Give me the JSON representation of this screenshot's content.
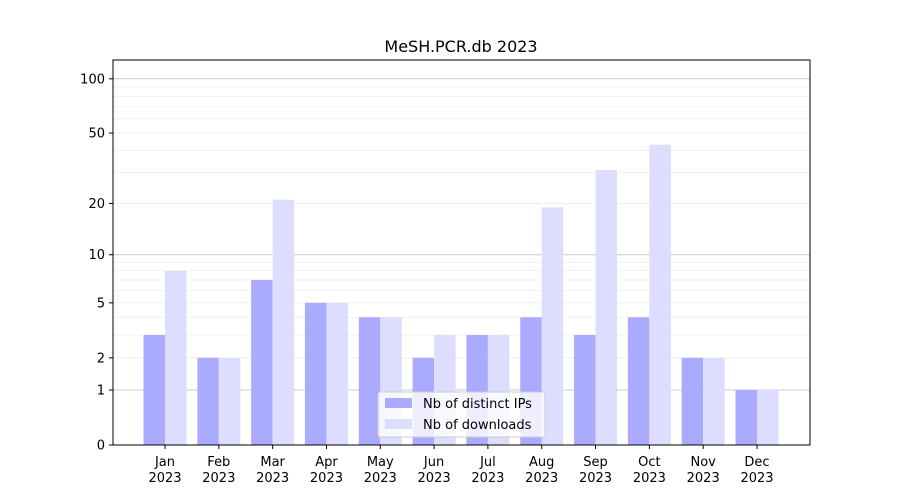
{
  "chart_data": {
    "type": "bar",
    "title": "MeSH.PCR.db 2023",
    "xlabel": "",
    "ylabel": "",
    "yscale": "symlog (log10(1+y))",
    "ylim": [
      0,
      127
    ],
    "yticks": [
      0,
      1,
      2,
      5,
      10,
      20,
      50,
      100
    ],
    "grid": true,
    "legend_position": "bottom-center",
    "categories": [
      [
        "Jan",
        "2023"
      ],
      [
        "Feb",
        "2023"
      ],
      [
        "Mar",
        "2023"
      ],
      [
        "Apr",
        "2023"
      ],
      [
        "May",
        "2023"
      ],
      [
        "Jun",
        "2023"
      ],
      [
        "Jul",
        "2023"
      ],
      [
        "Aug",
        "2023"
      ],
      [
        "Sep",
        "2023"
      ],
      [
        "Oct",
        "2023"
      ],
      [
        "Nov",
        "2023"
      ],
      [
        "Dec",
        "2023"
      ]
    ],
    "series": [
      {
        "name": "Nb of distinct IPs",
        "color": "#aaaaff",
        "values": [
          3,
          2,
          7,
          5,
          4,
          2,
          3,
          4,
          3,
          4,
          2,
          1
        ]
      },
      {
        "name": "Nb of downloads",
        "color": "#ddddff",
        "values": [
          8,
          2,
          21,
          5,
          4,
          3,
          3,
          19,
          31,
          43,
          2,
          1
        ]
      }
    ]
  }
}
